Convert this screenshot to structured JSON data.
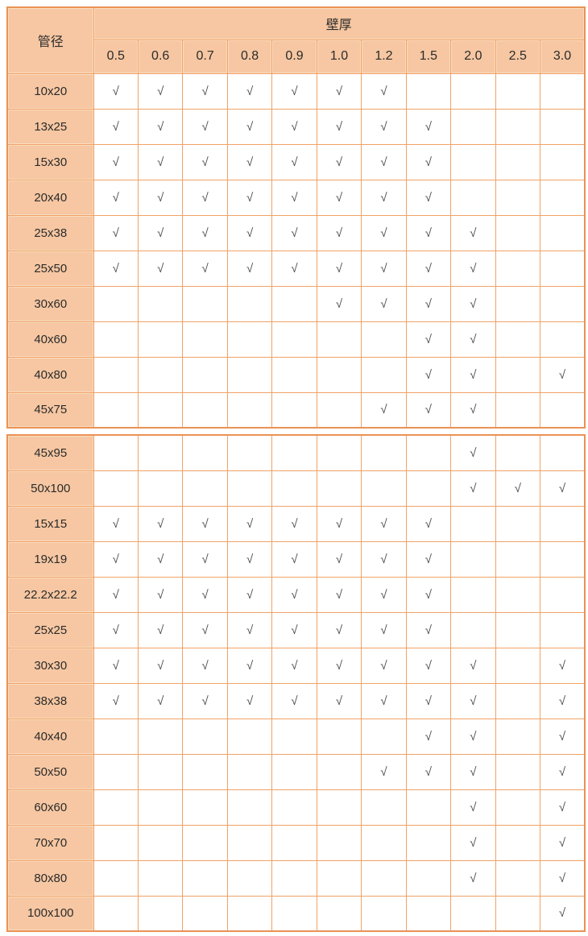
{
  "table": {
    "corner_header": "管径",
    "group_header": "壁厚",
    "thickness_columns": [
      "0.5",
      "0.6",
      "0.7",
      "0.8",
      "0.9",
      "1.0",
      "1.2",
      "1.5",
      "2.0",
      "2.5",
      "3.0"
    ],
    "check_symbol": "√",
    "sections": [
      {
        "rows": [
          {
            "label": "10x20",
            "checks": [
              "0.5",
              "0.6",
              "0.7",
              "0.8",
              "0.9",
              "1.0",
              "1.2"
            ]
          },
          {
            "label": "13x25",
            "checks": [
              "0.5",
              "0.6",
              "0.7",
              "0.8",
              "0.9",
              "1.0",
              "1.2",
              "1.5"
            ]
          },
          {
            "label": "15x30",
            "checks": [
              "0.5",
              "0.6",
              "0.7",
              "0.8",
              "0.9",
              "1.0",
              "1.2",
              "1.5"
            ]
          },
          {
            "label": "20x40",
            "checks": [
              "0.5",
              "0.6",
              "0.7",
              "0.8",
              "0.9",
              "1.0",
              "1.2",
              "1.5"
            ]
          },
          {
            "label": "25x38",
            "checks": [
              "0.5",
              "0.6",
              "0.7",
              "0.8",
              "0.9",
              "1.0",
              "1.2",
              "1.5",
              "2.0"
            ]
          },
          {
            "label": "25x50",
            "checks": [
              "0.5",
              "0.6",
              "0.7",
              "0.8",
              "0.9",
              "1.0",
              "1.2",
              "1.5",
              "2.0"
            ]
          },
          {
            "label": "30x60",
            "checks": [
              "1.0",
              "1.2",
              "1.5",
              "2.0"
            ]
          },
          {
            "label": "40x60",
            "checks": [
              "1.5",
              "2.0"
            ]
          },
          {
            "label": "40x80",
            "checks": [
              "1.5",
              "2.0",
              "3.0"
            ]
          },
          {
            "label": "45x75",
            "checks": [
              "1.2",
              "1.5",
              "2.0"
            ]
          }
        ]
      },
      {
        "rows": [
          {
            "label": "45x95",
            "checks": [
              "2.0"
            ]
          },
          {
            "label": "50x100",
            "checks": [
              "2.0",
              "2.5",
              "3.0"
            ]
          },
          {
            "label": "15x15",
            "checks": [
              "0.5",
              "0.6",
              "0.7",
              "0.8",
              "0.9",
              "1.0",
              "1.2",
              "1.5"
            ]
          },
          {
            "label": "19x19",
            "checks": [
              "0.5",
              "0.6",
              "0.7",
              "0.8",
              "0.9",
              "1.0",
              "1.2",
              "1.5"
            ]
          },
          {
            "label": "22.2x22.2",
            "checks": [
              "0.5",
              "0.6",
              "0.7",
              "0.8",
              "0.9",
              "1.0",
              "1.2",
              "1.5"
            ]
          },
          {
            "label": "25x25",
            "checks": [
              "0.5",
              "0.6",
              "0.7",
              "0.8",
              "0.9",
              "1.0",
              "1.2",
              "1.5"
            ]
          },
          {
            "label": "30x30",
            "checks": [
              "0.5",
              "0.6",
              "0.7",
              "0.8",
              "0.9",
              "1.0",
              "1.2",
              "1.5",
              "2.0",
              "3.0"
            ]
          },
          {
            "label": "38x38",
            "checks": [
              "0.5",
              "0.6",
              "0.7",
              "0.8",
              "0.9",
              "1.0",
              "1.2",
              "1.5",
              "2.0",
              "3.0"
            ]
          },
          {
            "label": "40x40",
            "checks": [
              "1.5",
              "2.0",
              "3.0"
            ]
          },
          {
            "label": "50x50",
            "checks": [
              "1.2",
              "1.5",
              "2.0",
              "3.0"
            ]
          },
          {
            "label": "60x60",
            "checks": [
              "2.0",
              "3.0"
            ]
          },
          {
            "label": "70x70",
            "checks": [
              "2.0",
              "3.0"
            ]
          },
          {
            "label": "80x80",
            "checks": [
              "2.0",
              "3.0"
            ]
          },
          {
            "label": "100x100",
            "checks": [
              "3.0"
            ]
          }
        ]
      }
    ]
  },
  "colors": {
    "header_bg": "#f6c7a2",
    "outer_border": "#ea9255",
    "grid_border": "#f0a266",
    "check_color": "#4d4d4d",
    "text_color": "#2b2b2b"
  }
}
